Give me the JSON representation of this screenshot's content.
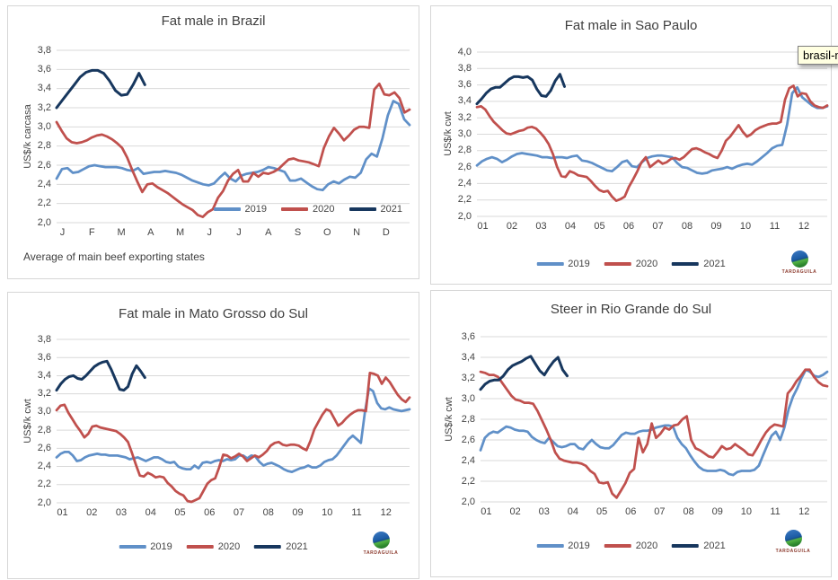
{
  "tooltip": {
    "text": "brasil-m",
    "bg": "#ffffe1"
  },
  "logo": {
    "label": "TARDAGUILA"
  },
  "colors": {
    "series_2019": "#6090C8",
    "series_2020": "#C0504D",
    "series_2021": "#17375E",
    "grid": "#D9D9D9",
    "axis_text": "#444444",
    "panel_border": "#D6D6D6"
  },
  "chart_data": [
    {
      "type": "line",
      "title": "Fat male in Brazil",
      "ylabel": "US$/k carcasa",
      "footnote": "Average of main beef exporting states",
      "ylim": [
        2.0,
        3.8
      ],
      "ystep": 0.2,
      "grid": true,
      "legend_position": "inside-bottom-right",
      "x_labels": [
        "J",
        "F",
        "M",
        "A",
        "M",
        "J",
        "J",
        "A",
        "S",
        "O",
        "N",
        "D"
      ],
      "series": [
        {
          "name": "2019",
          "color": "#6090C8",
          "span": 1,
          "values": [
            2.46,
            2.56,
            2.57,
            2.52,
            2.53,
            2.56,
            2.59,
            2.6,
            2.59,
            2.58,
            2.58,
            2.58,
            2.57,
            2.55,
            2.54,
            2.57,
            2.51,
            2.52,
            2.53,
            2.53,
            2.54,
            2.53,
            2.52,
            2.5,
            2.47,
            2.44,
            2.42,
            2.4,
            2.39,
            2.41,
            2.47,
            2.52,
            2.46,
            2.43,
            2.49,
            2.51,
            2.52,
            2.53,
            2.55,
            2.58,
            2.57,
            2.55,
            2.53,
            2.44,
            2.44,
            2.46,
            2.42,
            2.38,
            2.35,
            2.34,
            2.4,
            2.43,
            2.41,
            2.45,
            2.48,
            2.47,
            2.52,
            2.66,
            2.72,
            2.69,
            2.88,
            3.12,
            3.27,
            3.24,
            3.08,
            3.02
          ]
        },
        {
          "name": "2020",
          "color": "#C0504D",
          "span": 1,
          "values": [
            3.05,
            2.96,
            2.88,
            2.84,
            2.83,
            2.84,
            2.86,
            2.89,
            2.91,
            2.92,
            2.9,
            2.87,
            2.83,
            2.78,
            2.68,
            2.55,
            2.43,
            2.32,
            2.4,
            2.41,
            2.37,
            2.34,
            2.31,
            2.27,
            2.23,
            2.19,
            2.16,
            2.13,
            2.08,
            2.06,
            2.11,
            2.14,
            2.26,
            2.33,
            2.44,
            2.51,
            2.55,
            2.43,
            2.43,
            2.52,
            2.48,
            2.52,
            2.51,
            2.53,
            2.56,
            2.61,
            2.66,
            2.67,
            2.65,
            2.64,
            2.63,
            2.61,
            2.59,
            2.78,
            2.9,
            2.99,
            2.93,
            2.86,
            2.91,
            2.97,
            3.0,
            3.0,
            2.99,
            3.39,
            3.45,
            3.34,
            3.33,
            3.36,
            3.3,
            3.15,
            3.18
          ]
        },
        {
          "name": "2021",
          "color": "#17375E",
          "span": 0.25,
          "values": [
            3.2,
            3.28,
            3.36,
            3.44,
            3.52,
            3.57,
            3.59,
            3.59,
            3.56,
            3.48,
            3.38,
            3.33,
            3.34,
            3.44,
            3.56,
            3.44
          ]
        }
      ]
    },
    {
      "type": "line",
      "title": "Fat male in Sao Paulo",
      "ylabel": "US$/k cwt",
      "ylim": [
        2.0,
        4.0
      ],
      "ystep": 0.2,
      "grid": true,
      "legend_position": "below-center",
      "x_labels": [
        "01",
        "02",
        "03",
        "04",
        "05",
        "06",
        "07",
        "08",
        "09",
        "10",
        "11",
        "12"
      ],
      "series": [
        {
          "name": "2019",
          "color": "#6090C8",
          "span": 1,
          "values": [
            2.62,
            2.67,
            2.7,
            2.72,
            2.7,
            2.66,
            2.69,
            2.73,
            2.76,
            2.77,
            2.76,
            2.75,
            2.74,
            2.72,
            2.72,
            2.71,
            2.72,
            2.72,
            2.71,
            2.73,
            2.74,
            2.68,
            2.67,
            2.65,
            2.62,
            2.59,
            2.56,
            2.55,
            2.6,
            2.66,
            2.68,
            2.61,
            2.6,
            2.66,
            2.71,
            2.73,
            2.74,
            2.74,
            2.73,
            2.72,
            2.65,
            2.6,
            2.59,
            2.56,
            2.53,
            2.52,
            2.53,
            2.56,
            2.57,
            2.58,
            2.6,
            2.58,
            2.61,
            2.63,
            2.64,
            2.63,
            2.67,
            2.72,
            2.77,
            2.83,
            2.86,
            2.87,
            3.12,
            3.5,
            3.57,
            3.45,
            3.4,
            3.35,
            3.32,
            3.32,
            3.34
          ]
        },
        {
          "name": "2020",
          "color": "#C0504D",
          "span": 1,
          "values": [
            3.33,
            3.34,
            3.3,
            3.22,
            3.15,
            3.1,
            3.05,
            3.01,
            3.0,
            3.02,
            3.04,
            3.05,
            3.08,
            3.09,
            3.07,
            3.02,
            2.96,
            2.88,
            2.76,
            2.6,
            2.49,
            2.48,
            2.55,
            2.53,
            2.5,
            2.49,
            2.48,
            2.43,
            2.37,
            2.32,
            2.3,
            2.31,
            2.24,
            2.19,
            2.21,
            2.24,
            2.36,
            2.45,
            2.55,
            2.66,
            2.72,
            2.6,
            2.64,
            2.68,
            2.64,
            2.66,
            2.7,
            2.71,
            2.69,
            2.72,
            2.77,
            2.82,
            2.83,
            2.81,
            2.78,
            2.76,
            2.73,
            2.71,
            2.8,
            2.92,
            2.97,
            3.04,
            3.11,
            3.03,
            2.97,
            3.0,
            3.05,
            3.08,
            3.1,
            3.12,
            3.13,
            3.13,
            3.15,
            3.42,
            3.56,
            3.59,
            3.46,
            3.5,
            3.49,
            3.4,
            3.35,
            3.33,
            3.32,
            3.35
          ]
        },
        {
          "name": "2021",
          "color": "#17375E",
          "span": 0.25,
          "values": [
            3.37,
            3.43,
            3.5,
            3.55,
            3.57,
            3.57,
            3.62,
            3.67,
            3.7,
            3.7,
            3.69,
            3.7,
            3.66,
            3.55,
            3.47,
            3.46,
            3.53,
            3.65,
            3.73,
            3.58
          ]
        }
      ]
    },
    {
      "type": "line",
      "title": "Fat male in Mato Grosso do Sul",
      "ylabel": "US$/k cwt",
      "ylim": [
        2.0,
        3.8
      ],
      "ystep": 0.2,
      "grid": true,
      "legend_position": "below-center",
      "x_labels": [
        "01",
        "02",
        "03",
        "04",
        "05",
        "06",
        "07",
        "08",
        "09",
        "10",
        "11",
        "12"
      ],
      "series": [
        {
          "name": "2019",
          "color": "#6090C8",
          "span": 1,
          "values": [
            2.5,
            2.54,
            2.56,
            2.56,
            2.52,
            2.46,
            2.47,
            2.5,
            2.52,
            2.53,
            2.54,
            2.53,
            2.53,
            2.52,
            2.52,
            2.52,
            2.51,
            2.5,
            2.48,
            2.49,
            2.5,
            2.48,
            2.46,
            2.48,
            2.5,
            2.5,
            2.48,
            2.45,
            2.44,
            2.45,
            2.4,
            2.38,
            2.37,
            2.37,
            2.41,
            2.38,
            2.44,
            2.45,
            2.44,
            2.46,
            2.47,
            2.46,
            2.48,
            2.47,
            2.48,
            2.52,
            2.52,
            2.49,
            2.52,
            2.51,
            2.45,
            2.41,
            2.43,
            2.44,
            2.42,
            2.4,
            2.37,
            2.35,
            2.34,
            2.36,
            2.38,
            2.39,
            2.41,
            2.39,
            2.39,
            2.41,
            2.45,
            2.47,
            2.48,
            2.52,
            2.58,
            2.64,
            2.7,
            2.74,
            2.7,
            2.66,
            3.0,
            3.26,
            3.23,
            3.1,
            3.04,
            3.03,
            3.05,
            3.03,
            3.02,
            3.01,
            3.02,
            3.03
          ]
        },
        {
          "name": "2020",
          "color": "#C0504D",
          "span": 1,
          "values": [
            3.02,
            3.07,
            3.08,
            2.99,
            2.92,
            2.85,
            2.79,
            2.72,
            2.76,
            2.84,
            2.85,
            2.83,
            2.82,
            2.81,
            2.8,
            2.79,
            2.76,
            2.72,
            2.67,
            2.55,
            2.42,
            2.3,
            2.29,
            2.33,
            2.31,
            2.28,
            2.29,
            2.28,
            2.22,
            2.18,
            2.13,
            2.1,
            2.08,
            2.02,
            2.01,
            2.03,
            2.05,
            2.13,
            2.21,
            2.25,
            2.27,
            2.39,
            2.53,
            2.52,
            2.49,
            2.51,
            2.54,
            2.51,
            2.46,
            2.49,
            2.52,
            2.5,
            2.53,
            2.57,
            2.63,
            2.66,
            2.67,
            2.64,
            2.63,
            2.64,
            2.64,
            2.63,
            2.6,
            2.58,
            2.68,
            2.81,
            2.89,
            2.97,
            3.03,
            3.01,
            2.93,
            2.85,
            2.88,
            2.93,
            2.97,
            3.0,
            3.02,
            3.02,
            3.01,
            3.43,
            3.42,
            3.4,
            3.31,
            3.38,
            3.33,
            3.26,
            3.19,
            3.14,
            3.11,
            3.16
          ]
        },
        {
          "name": "2021",
          "color": "#17375E",
          "span": 0.25,
          "values": [
            3.24,
            3.31,
            3.36,
            3.39,
            3.4,
            3.37,
            3.36,
            3.4,
            3.45,
            3.5,
            3.53,
            3.55,
            3.56,
            3.47,
            3.36,
            3.25,
            3.24,
            3.28,
            3.42,
            3.51,
            3.45,
            3.38
          ]
        }
      ]
    },
    {
      "type": "line",
      "title": "Steer in Rio Grande do Sul",
      "ylabel": "US$/k cwt",
      "ylim": [
        2.0,
        3.6
      ],
      "ystep": 0.2,
      "grid": true,
      "legend_position": "below-center",
      "x_labels": [
        "01",
        "02",
        "03",
        "04",
        "05",
        "06",
        "07",
        "08",
        "09",
        "10",
        "11",
        "12"
      ],
      "series": [
        {
          "name": "2019",
          "color": "#6090C8",
          "span": 1,
          "values": [
            2.5,
            2.62,
            2.66,
            2.68,
            2.67,
            2.7,
            2.73,
            2.72,
            2.7,
            2.69,
            2.69,
            2.68,
            2.63,
            2.6,
            2.58,
            2.57,
            2.62,
            2.58,
            2.54,
            2.53,
            2.54,
            2.56,
            2.56,
            2.52,
            2.51,
            2.56,
            2.6,
            2.56,
            2.53,
            2.52,
            2.52,
            2.55,
            2.6,
            2.65,
            2.67,
            2.66,
            2.66,
            2.68,
            2.69,
            2.69,
            2.7,
            2.72,
            2.73,
            2.74,
            2.74,
            2.73,
            2.62,
            2.56,
            2.52,
            2.45,
            2.39,
            2.34,
            2.31,
            2.3,
            2.3,
            2.3,
            2.31,
            2.3,
            2.27,
            2.26,
            2.29,
            2.3,
            2.3,
            2.3,
            2.31,
            2.35,
            2.45,
            2.55,
            2.64,
            2.68,
            2.6,
            2.72,
            2.9,
            3.02,
            3.1,
            3.2,
            3.28,
            3.26,
            3.22,
            3.21,
            3.23,
            3.26
          ]
        },
        {
          "name": "2020",
          "color": "#C0504D",
          "span": 1,
          "values": [
            3.26,
            3.25,
            3.23,
            3.23,
            3.21,
            3.15,
            3.09,
            3.03,
            2.99,
            2.98,
            2.96,
            2.96,
            2.95,
            2.88,
            2.79,
            2.7,
            2.6,
            2.48,
            2.42,
            2.4,
            2.39,
            2.38,
            2.38,
            2.37,
            2.35,
            2.3,
            2.27,
            2.19,
            2.18,
            2.19,
            2.08,
            2.04,
            2.11,
            2.18,
            2.28,
            2.32,
            2.62,
            2.48,
            2.56,
            2.76,
            2.62,
            2.66,
            2.72,
            2.7,
            2.74,
            2.75,
            2.8,
            2.83,
            2.6,
            2.52,
            2.5,
            2.47,
            2.44,
            2.43,
            2.48,
            2.54,
            2.51,
            2.52,
            2.56,
            2.53,
            2.5,
            2.46,
            2.45,
            2.52,
            2.6,
            2.67,
            2.72,
            2.75,
            2.74,
            2.73,
            3.05,
            3.1,
            3.17,
            3.22,
            3.28,
            3.28,
            3.21,
            3.16,
            3.13,
            3.12
          ]
        },
        {
          "name": "2021",
          "color": "#17375E",
          "span": 0.25,
          "values": [
            3.09,
            3.14,
            3.17,
            3.18,
            3.18,
            3.22,
            3.28,
            3.32,
            3.34,
            3.36,
            3.39,
            3.41,
            3.34,
            3.27,
            3.23,
            3.3,
            3.36,
            3.4,
            3.28,
            3.22
          ]
        }
      ]
    }
  ]
}
